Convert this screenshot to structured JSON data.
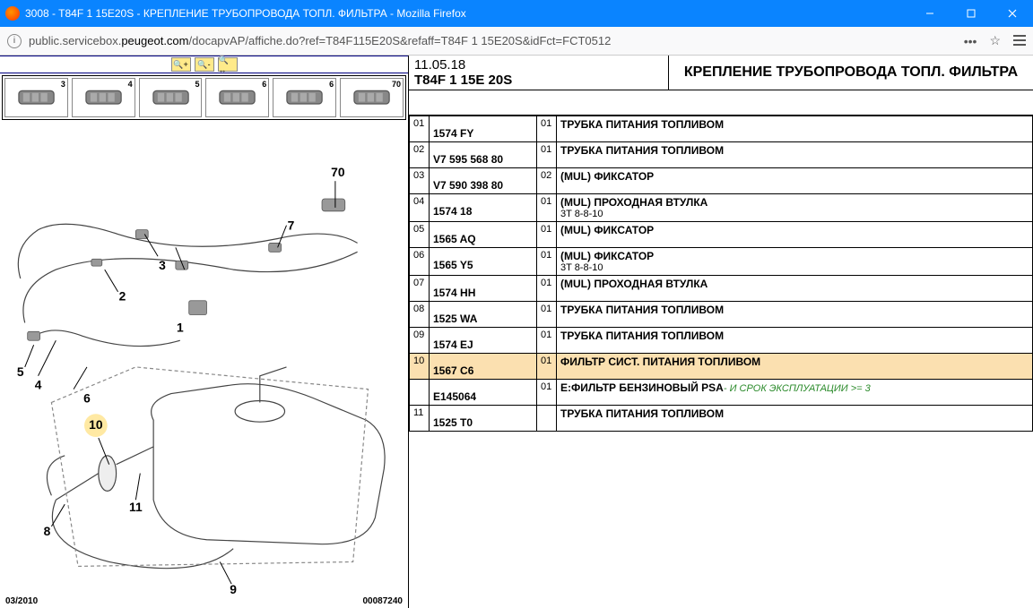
{
  "window": {
    "title": "3008 - T84F 1 15E20S - КРЕПЛЕНИЕ ТРУБОПРОВОДА ТОПЛ. ФИЛЬТРА - Mozilla Firefox",
    "url_prefix": "public.servicebox.",
    "url_host": "peugeot.com",
    "url_path": "/docapvAP/affiche.do?ref=T84F115E20S&refaff=T84F 1 15E20S&idFct=FCT0512"
  },
  "thumbs": [
    "3",
    "4",
    "5",
    "6",
    "6",
    "70"
  ],
  "diagram": {
    "callouts": [
      "1",
      "2",
      "3",
      "4",
      "5",
      "6",
      "7",
      "8",
      "9",
      "10",
      "11",
      "70"
    ],
    "highlight": "10",
    "date": "03/2010",
    "img_id": "00087240"
  },
  "header": {
    "date": "11.05.18",
    "code": "T84F 1 15E 20S",
    "title": "КРЕПЛЕНИЕ ТРУБОПРОВОДА ТОПЛ. ФИЛЬТРА"
  },
  "rows": [
    {
      "n": "01",
      "ref": "1574 FY",
      "q": "01",
      "desc": "ТРУБКА ПИТАНИЯ ТОПЛИВОМ"
    },
    {
      "n": "02",
      "ref": "V7 595 568 80",
      "q": "01",
      "desc": "ТРУБКА ПИТАНИЯ ТОПЛИВОМ"
    },
    {
      "n": "03",
      "ref": "V7 590 398 80",
      "q": "02",
      "desc": "(MUL) ФИКСАТОР"
    },
    {
      "n": "04",
      "ref": "1574 18",
      "q": "01",
      "desc": "(MUL) ПРОХОДНАЯ ВТУЛКА",
      "sub": "3T 8-8-10"
    },
    {
      "n": "05",
      "ref": "1565 AQ",
      "q": "01",
      "desc": "(MUL) ФИКСАТОР"
    },
    {
      "n": "06",
      "ref": "1565 Y5",
      "q": "01",
      "desc": "(MUL) ФИКСАТОР",
      "sub": "3T 8-8-10"
    },
    {
      "n": "07",
      "ref": "1574 HH",
      "q": "01",
      "desc": "(MUL) ПРОХОДНАЯ ВТУЛКА"
    },
    {
      "n": "08",
      "ref": "1525 WA",
      "q": "01",
      "desc": "ТРУБКА ПИТАНИЯ ТОПЛИВОМ"
    },
    {
      "n": "09",
      "ref": "1574 EJ",
      "q": "01",
      "desc": "ТРУБКА ПИТАНИЯ ТОПЛИВОМ"
    },
    {
      "n": "10",
      "ref": "1567 C6",
      "q": "01",
      "desc": "ФИЛЬТР СИСТ. ПИТАНИЯ ТОПЛИВОМ",
      "hl": true
    },
    {
      "n": "",
      "ref": "E145064",
      "q": "01",
      "desc": "E:ФИЛЬТР БЕНЗИНОВЫЙ PSA",
      "green": "- И СРОК ЭКСПЛУАТАЦИИ >= 3"
    },
    {
      "n": "11",
      "ref": "1525 T0",
      "q": "",
      "desc": "ТРУБКА ПИТАНИЯ ТОПЛИВОМ"
    }
  ],
  "colors": {
    "titlebar": "#0a84ff",
    "highlight": "#fbe0b0",
    "callout_hl": "#ffe9a3",
    "green": "#2a8a2a"
  }
}
